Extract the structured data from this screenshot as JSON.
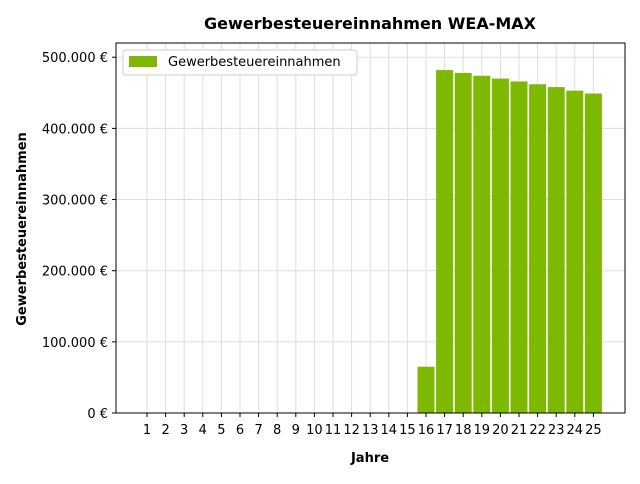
{
  "chart_data": {
    "type": "bar",
    "title": "Gewerbesteuereinnahmen WEA-MAX",
    "xlabel": "Jahre",
    "ylabel": "Gewerbesteuereinnahmen",
    "categories": [
      "1",
      "2",
      "3",
      "4",
      "5",
      "6",
      "7",
      "8",
      "9",
      "10",
      "11",
      "12",
      "13",
      "14",
      "15",
      "16",
      "17",
      "18",
      "19",
      "20",
      "21",
      "22",
      "23",
      "24",
      "25"
    ],
    "series": [
      {
        "name": "Gewerbesteuereinnahmen",
        "values": [
          0,
          0,
          0,
          0,
          0,
          0,
          0,
          0,
          0,
          0,
          0,
          0,
          0,
          0,
          0,
          65000,
          482000,
          478000,
          474000,
          470000,
          466000,
          462000,
          458000,
          453000,
          449000
        ]
      }
    ],
    "ylim": [
      0,
      520000
    ],
    "yticks": [
      0,
      100000,
      200000,
      300000,
      400000,
      500000
    ],
    "ytick_labels": [
      "0 €",
      "100.000 €",
      "200.000 €",
      "300.000 €",
      "400.000 €",
      "500.000 €"
    ],
    "grid": true,
    "legend_position": "top-left",
    "bar_color": "#7cb900",
    "grid_color": "#dddddd"
  }
}
